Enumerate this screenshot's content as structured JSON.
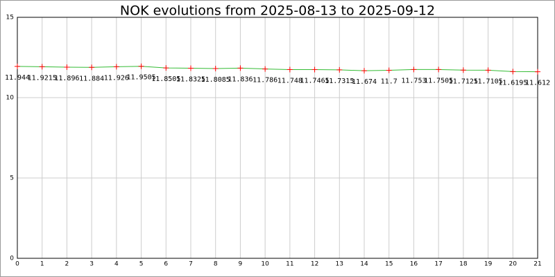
{
  "chart_data": {
    "type": "line",
    "title": "NOK evolutions from 2025-08-13 to 2025-09-12",
    "x": [
      0,
      1,
      2,
      3,
      4,
      5,
      6,
      7,
      8,
      9,
      10,
      11,
      12,
      13,
      14,
      15,
      16,
      17,
      18,
      19,
      20,
      21
    ],
    "series": [
      {
        "name": "NOK",
        "color": "#33bb33",
        "marker_color": "#ff0000",
        "values": [
          11.944,
          11.9215,
          11.896,
          11.884,
          11.926,
          11.9505,
          11.8505,
          11.8325,
          11.8085,
          11.836,
          11.786,
          11.748,
          11.7465,
          11.7315,
          11.674,
          11.7,
          11.753,
          11.7505,
          11.7125,
          11.7105,
          11.6195,
          11.612
        ]
      }
    ],
    "xlim": [
      0,
      21
    ],
    "xticks": [
      0,
      1,
      2,
      3,
      4,
      5,
      6,
      7,
      8,
      9,
      10,
      11,
      12,
      13,
      14,
      15,
      16,
      17,
      18,
      19,
      20,
      21
    ],
    "ylim": [
      0,
      15
    ],
    "yticks": [
      0,
      5,
      10,
      15
    ],
    "grid": true
  }
}
